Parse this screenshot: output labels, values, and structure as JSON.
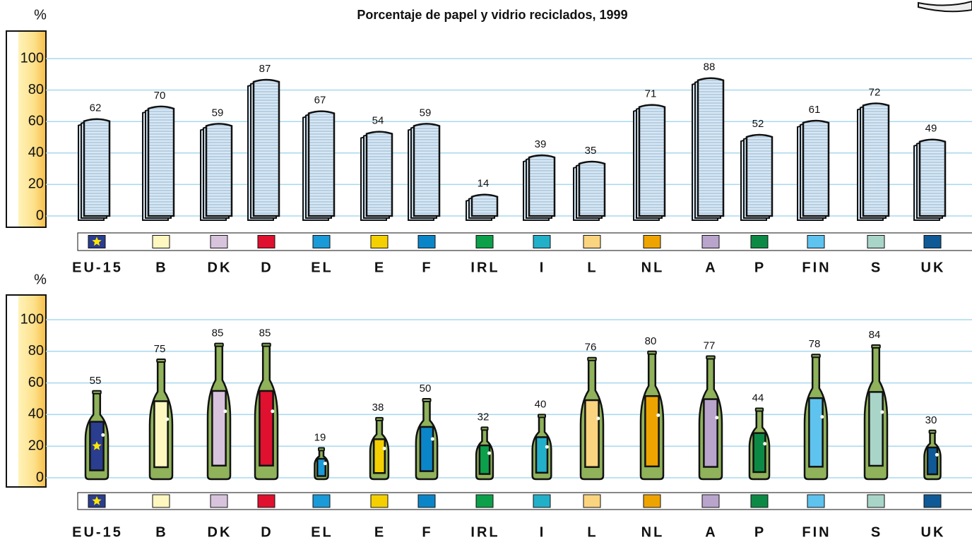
{
  "chart_data": [
    {
      "type": "bar",
      "marker": "newspaper",
      "title": "Porcentaje de papel y vidrio reciclados, 1999",
      "y_label": "%",
      "categories": [
        "EU-15",
        "B",
        "DK",
        "D",
        "EL",
        "E",
        "F",
        "IRL",
        "I",
        "L",
        "NL",
        "A",
        "P",
        "FIN",
        "S",
        "UK"
      ],
      "values": [
        62,
        70,
        59,
        87,
        67,
        54,
        59,
        14,
        39,
        35,
        71,
        88,
        52,
        61,
        72,
        49
      ],
      "colors": [
        "#2a3d8f",
        "#fff7c0",
        "#d8c3dd",
        "#e0102f",
        "#1a9ad6",
        "#f5d000",
        "#0a86c8",
        "#0ca04a",
        "#22b0c8",
        "#fbd47f",
        "#eea400",
        "#b9a4cc",
        "#0c8a45",
        "#5ec3ee",
        "#a8d5c8",
        "#0f5a96"
      ],
      "ylim": [
        0,
        100
      ],
      "yticks": [
        0,
        20,
        40,
        60,
        80,
        100
      ],
      "grid": true
    },
    {
      "type": "bar",
      "marker": "bottle",
      "y_label": "%",
      "categories": [
        "EU-15",
        "B",
        "DK",
        "D",
        "EL",
        "E",
        "F",
        "IRL",
        "I",
        "L",
        "NL",
        "A",
        "P",
        "FIN",
        "S",
        "UK"
      ],
      "values": [
        55,
        75,
        85,
        85,
        19,
        38,
        50,
        32,
        40,
        76,
        80,
        77,
        44,
        78,
        84,
        30
      ],
      "colors": [
        "#2a3d8f",
        "#fff7c0",
        "#d8c3dd",
        "#e0102f",
        "#1a9ad6",
        "#f5d000",
        "#0a86c8",
        "#0ca04a",
        "#22b0c8",
        "#fbd47f",
        "#eea400",
        "#b9a4cc",
        "#0c8a45",
        "#5ec3ee",
        "#a8d5c8",
        "#0f5a96"
      ],
      "ylim": [
        0,
        100
      ],
      "yticks": [
        0,
        20,
        40,
        60,
        80,
        100
      ],
      "grid": true
    }
  ]
}
